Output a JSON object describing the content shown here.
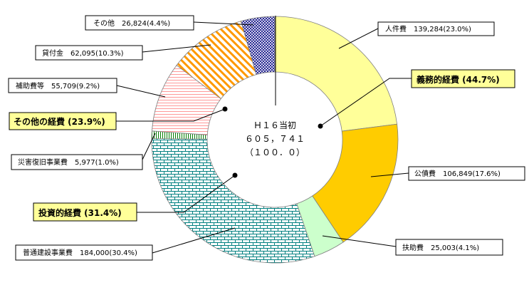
{
  "chart_data": {
    "type": "pie",
    "center": {
      "line1": "Ｈ１６当初",
      "line2": "６０５，７４１",
      "line3": "（１００．０）"
    },
    "slices": [
      {
        "name": "人件費",
        "value": 139284,
        "percent": 23.0,
        "label": "人件費　139,284(23.0%)",
        "color": "#ffff99",
        "pattern": "solid"
      },
      {
        "name": "公債費",
        "value": 106849,
        "percent": 17.6,
        "label": "公債費　106,849(17.6%)",
        "color": "#ffcc00",
        "pattern": "solid"
      },
      {
        "name": "扶助費",
        "value": 25003,
        "percent": 4.1,
        "label": "扶助費　25,003(4.1%)",
        "color": "#ccffcc",
        "pattern": "solid"
      },
      {
        "name": "普通建設事業費",
        "value": 184000,
        "percent": 30.4,
        "label": "普通建設事業費　184,000(30.4%)",
        "color": "#008080",
        "pattern": "brick"
      },
      {
        "name": "災害復旧事業費",
        "value": 5977,
        "percent": 1.0,
        "label": "災害復旧事業費　5,977(1.0%)",
        "color": "#008000",
        "pattern": "vertical"
      },
      {
        "name": "補助費等",
        "value": 55709,
        "percent": 9.2,
        "label": "補助費等　55,709(9.2%)",
        "color": "#ff9999",
        "pattern": "horizontal"
      },
      {
        "name": "貸付金",
        "value": 62095,
        "percent": 10.3,
        "label": "貸付金　62,095(10.3%)",
        "color": "#ff9900",
        "pattern": "diagonal"
      },
      {
        "name": "その他",
        "value": 26824,
        "percent": 4.4,
        "label": "その他　26,824(4.4%)",
        "color": "#000080",
        "pattern": "crosshatch"
      }
    ],
    "groups": [
      {
        "label": "義務的経費 (44.7%)"
      },
      {
        "label": "その他の経費 (23.9%)"
      },
      {
        "label": "投資的経費 (31.4%)"
      }
    ]
  }
}
